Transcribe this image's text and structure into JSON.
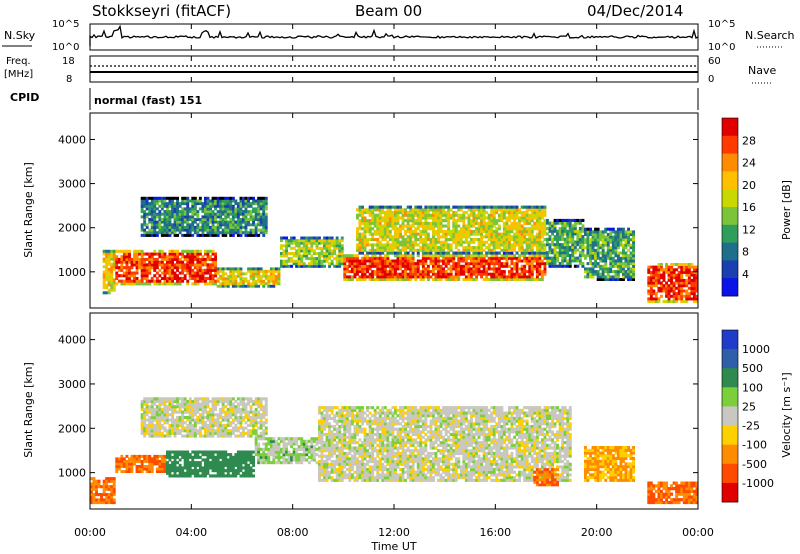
{
  "header": {
    "station": "Stokkseyri (fitACF)",
    "beam": "Beam 00",
    "date": "04/Dec/2014"
  },
  "nsky_panel": {
    "left_label": "N.Sky",
    "left_ticks": [
      "10^5",
      "10^0"
    ],
    "right_label": "N.Search",
    "right_ticks": [
      "10^5",
      "10^0"
    ]
  },
  "freq_panel": {
    "left_label": "Freq.",
    "left_unit": "[MHz]",
    "left_ticks": [
      "18",
      "8"
    ],
    "right_label": "Nave",
    "right_ticks": [
      "60",
      "0"
    ]
  },
  "cpid_panel": {
    "label": "CPID",
    "text": "normal (fast) 151"
  },
  "power_panel": {
    "ylabel": "Slant Range [km]",
    "yticks": [
      "4000",
      "3000",
      "2000",
      "1000"
    ],
    "colorbar_label": "Power [dB]",
    "colorbar_ticks": [
      "28",
      "24",
      "20",
      "16",
      "12",
      "8",
      "4"
    ],
    "colorbar_colors": [
      "#e00000",
      "#ff3a00",
      "#ff8c00",
      "#ffc000",
      "#c8d800",
      "#7cc43a",
      "#2e9e5a",
      "#1f6e8c",
      "#1a3fb0",
      "#0a14e6"
    ]
  },
  "velocity_panel": {
    "ylabel": "Slant Range [km]",
    "yticks": [
      "4000",
      "3000",
      "2000",
      "1000"
    ],
    "colorbar_label": "Velocity [m s⁻¹]",
    "colorbar_ticks": [
      "1000",
      "500",
      "100",
      "25",
      "-25",
      "-100",
      "-500",
      "-1000"
    ],
    "colorbar_colors": [
      "#1e3cc8",
      "#2e5fa8",
      "#2e8a4e",
      "#7bcf3a",
      "#c8c8c0",
      "#ffd000",
      "#ff8c00",
      "#ff4a00",
      "#e00000"
    ]
  },
  "x_axis": {
    "xlabel": "Time UT",
    "ticks": [
      "00:00",
      "04:00",
      "08:00",
      "12:00",
      "16:00",
      "20:00",
      "00:00"
    ]
  },
  "chart_data": {
    "type": "heatmap",
    "title": "Stokkseyri (fitACF)   Beam 00   04/Dec/2014",
    "xlabel": "Time UT",
    "ylabel": "Slant Range [km]",
    "xlim_hours": [
      0,
      24
    ],
    "ylim_km": [
      180,
      4600
    ],
    "panels": [
      {
        "name": "Power",
        "unit": "dB",
        "colorbar_range": [
          0,
          32
        ],
        "bands": [
          {
            "t0": 0.5,
            "t1": 1.0,
            "r0": 500,
            "r1": 1500,
            "value": 20
          },
          {
            "t0": 1.0,
            "t1": 5.0,
            "r0": 700,
            "r1": 1500,
            "value": 28
          },
          {
            "t0": 5.0,
            "t1": 7.5,
            "r0": 650,
            "r1": 1100,
            "value": 20
          },
          {
            "t0": 7.5,
            "t1": 10.0,
            "r0": 1100,
            "r1": 1800,
            "value": 16
          },
          {
            "t0": 10.0,
            "t1": 18.0,
            "r0": 800,
            "r1": 1400,
            "value": 28
          },
          {
            "t0": 10.5,
            "t1": 18.0,
            "r0": 1400,
            "r1": 2500,
            "value": 18
          },
          {
            "t0": 18.0,
            "t1": 19.5,
            "r0": 1100,
            "r1": 2200,
            "value": 12
          },
          {
            "t0": 19.5,
            "t1": 21.5,
            "r0": 800,
            "r1": 2000,
            "value": 12
          },
          {
            "t0": 22.0,
            "t1": 24.0,
            "r0": 300,
            "r1": 1200,
            "value": 28
          },
          {
            "t0": 2.0,
            "t1": 7.0,
            "r0": 1800,
            "r1": 2700,
            "value": 10
          }
        ]
      },
      {
        "name": "Velocity",
        "unit": "m s^-1",
        "colorbar_range": [
          -1000,
          1000
        ],
        "bands": [
          {
            "t0": 0.0,
            "t1": 1.0,
            "r0": 300,
            "r1": 900,
            "value": -500
          },
          {
            "t0": 1.0,
            "t1": 3.0,
            "r0": 1000,
            "r1": 1400,
            "value": -500
          },
          {
            "t0": 3.0,
            "t1": 6.5,
            "r0": 900,
            "r1": 1500,
            "value": 100
          },
          {
            "t0": 6.5,
            "t1": 9.0,
            "r0": 1200,
            "r1": 1800,
            "value": 25
          },
          {
            "t0": 9.0,
            "t1": 19.0,
            "r0": 800,
            "r1": 2500,
            "value": 0
          },
          {
            "t0": 17.5,
            "t1": 18.5,
            "r0": 700,
            "r1": 1100,
            "value": -500
          },
          {
            "t0": 19.5,
            "t1": 21.5,
            "r0": 800,
            "r1": 1600,
            "value": -100
          },
          {
            "t0": 22.0,
            "t1": 24.0,
            "r0": 300,
            "r1": 800,
            "value": -500
          },
          {
            "t0": 2.0,
            "t1": 7.0,
            "r0": 1800,
            "r1": 2700,
            "value": 0
          }
        ]
      }
    ]
  }
}
